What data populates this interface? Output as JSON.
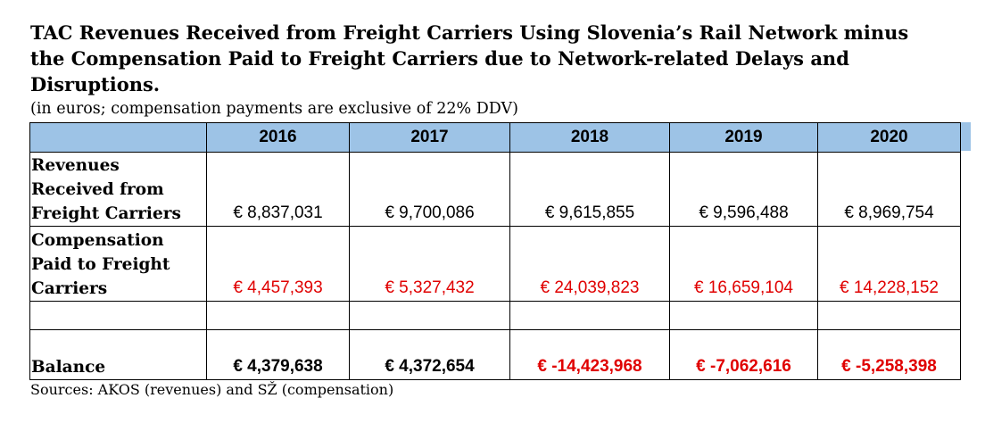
{
  "title": "TAC Revenues Received from Freight Carriers Using Slovenia’s Rail Network minus the Compensation Paid to Freight Carriers due to Network-related Delays and Disruptions.",
  "subtitle": "(in euros;  compensation payments are exclusive of 22% DDV)",
  "table": {
    "years": [
      "2016",
      "2017",
      "2018",
      "2019",
      "2020"
    ],
    "rows": [
      {
        "label": "Revenues Received from Freight Carriers",
        "values": [
          "€ 8,837,031",
          "€ 9,700,086",
          "€ 9,615,855",
          "€ 9,596,488",
          "€ 8,969,754"
        ]
      },
      {
        "label": "Compensation Paid to Freight Carriers",
        "values": [
          "€ 4,457,393",
          "€ 5,327,432",
          "€ 24,039,823",
          "€ 16,659,104",
          "€ 14,228,152"
        ]
      },
      {
        "label": "",
        "values": [
          "",
          "",
          "",
          "",
          ""
        ]
      },
      {
        "label": "Balance",
        "values": [
          "€ 4,379,638",
          "€ 4,372,654",
          "€ -14,423,968",
          "€ -7,062,616",
          "€ -5,258,398"
        ]
      }
    ]
  },
  "colors": {
    "header_fill": "#9dc3e6",
    "negative_red": "#e00000"
  },
  "sources": "Sources:  AKOS (revenues) and SŽ (compensation)"
}
